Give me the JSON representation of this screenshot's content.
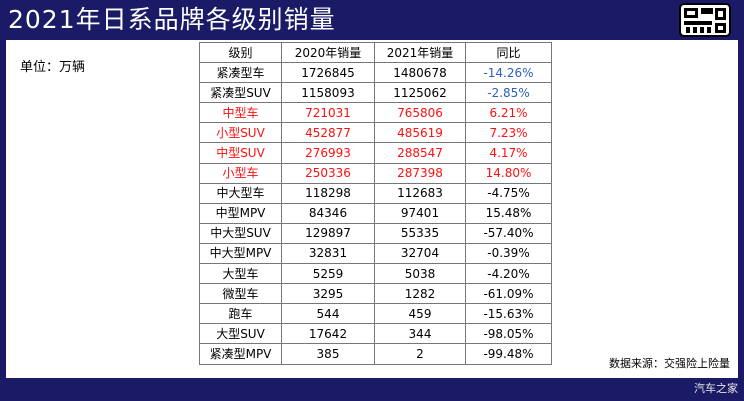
{
  "title": "2021年日系品牌各级别销量",
  "logo_text": "盘点",
  "unit_label": "单位：万辆",
  "table": {
    "headers": [
      "级别",
      "2020年销量",
      "2021年销量",
      "同比"
    ],
    "rows": [
      {
        "level": "紧凑型车",
        "y2020": "1726845",
        "y2021": "1480678",
        "yoy": "-14.26%",
        "style": "blue"
      },
      {
        "level": "紧凑型SUV",
        "y2020": "1158093",
        "y2021": "1125062",
        "yoy": "-2.85%",
        "style": "blue"
      },
      {
        "level": "中型车",
        "y2020": "721031",
        "y2021": "765806",
        "yoy": "6.21%",
        "style": "red"
      },
      {
        "level": "小型SUV",
        "y2020": "452877",
        "y2021": "485619",
        "yoy": "7.23%",
        "style": "red"
      },
      {
        "level": "中型SUV",
        "y2020": "276993",
        "y2021": "288547",
        "yoy": "4.17%",
        "style": "red"
      },
      {
        "level": "小型车",
        "y2020": "250336",
        "y2021": "287398",
        "yoy": "14.80%",
        "style": "red"
      },
      {
        "level": "中大型车",
        "y2020": "118298",
        "y2021": "112683",
        "yoy": "-4.75%",
        "style": "normal"
      },
      {
        "level": "中型MPV",
        "y2020": "84346",
        "y2021": "97401",
        "yoy": "15.48%",
        "style": "normal"
      },
      {
        "level": "中大型SUV",
        "y2020": "129897",
        "y2021": "55335",
        "yoy": "-57.40%",
        "style": "normal"
      },
      {
        "level": "中大型MPV",
        "y2020": "32831",
        "y2021": "32704",
        "yoy": "-0.39%",
        "style": "normal"
      },
      {
        "level": "大型车",
        "y2020": "5259",
        "y2021": "5038",
        "yoy": "-4.20%",
        "style": "normal"
      },
      {
        "level": "微型车",
        "y2020": "3295",
        "y2021": "1282",
        "yoy": "-61.09%",
        "style": "normal"
      },
      {
        "level": "跑车",
        "y2020": "544",
        "y2021": "459",
        "yoy": "-15.63%",
        "style": "normal"
      },
      {
        "level": "大型SUV",
        "y2020": "17642",
        "y2021": "344",
        "yoy": "-98.05%",
        "style": "normal"
      },
      {
        "level": "紧凑型MPV",
        "y2020": "385",
        "y2021": "2",
        "yoy": "-99.48%",
        "style": "normal"
      }
    ]
  },
  "source": "数据来源：交强险上险量",
  "watermark": "汽车之家",
  "colors": {
    "background": "#1a1a66",
    "highlight_red": "#ff1010",
    "highlight_blue": "#2c5fbf"
  }
}
